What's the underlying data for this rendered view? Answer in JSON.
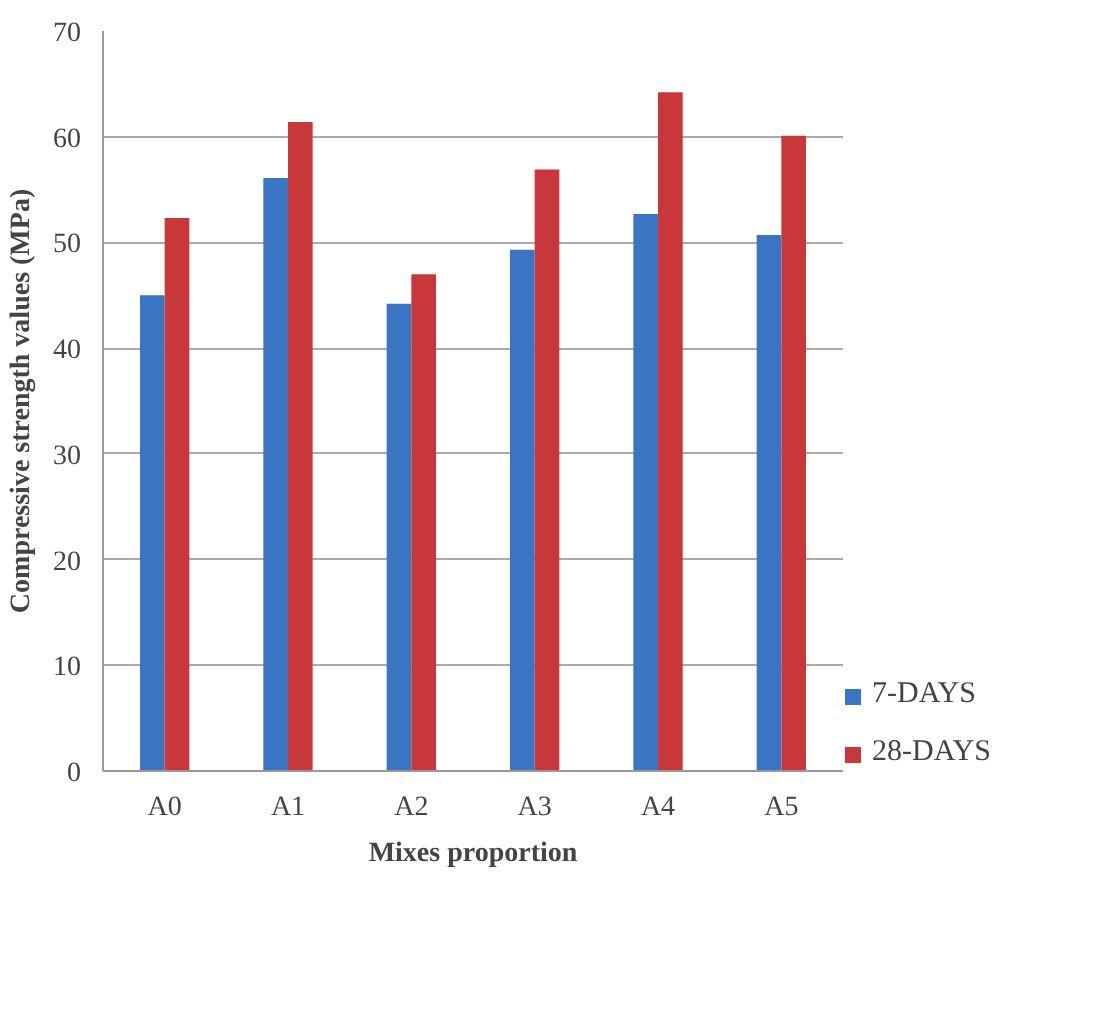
{
  "chart_data": {
    "type": "bar",
    "xlabel": "Mixes proportion",
    "ylabel": "Compressive strength values (MPa)",
    "categories": [
      "A0",
      "A1",
      "A2",
      "A3",
      "A4",
      "A5"
    ],
    "series": [
      {
        "name": "7-DAYS",
        "color": "#3a75c4",
        "values": [
          45.0,
          56.1,
          44.2,
          49.3,
          52.7,
          50.7
        ]
      },
      {
        "name": "28-DAYS",
        "color": "#c8383a",
        "values": [
          52.3,
          61.4,
          47.0,
          56.9,
          64.2,
          60.1
        ]
      }
    ],
    "ylim": [
      0,
      70
    ],
    "yticks": [
      0,
      10,
      20,
      30,
      40,
      50,
      60,
      70
    ],
    "grid": "y",
    "legend": "bottom right"
  }
}
